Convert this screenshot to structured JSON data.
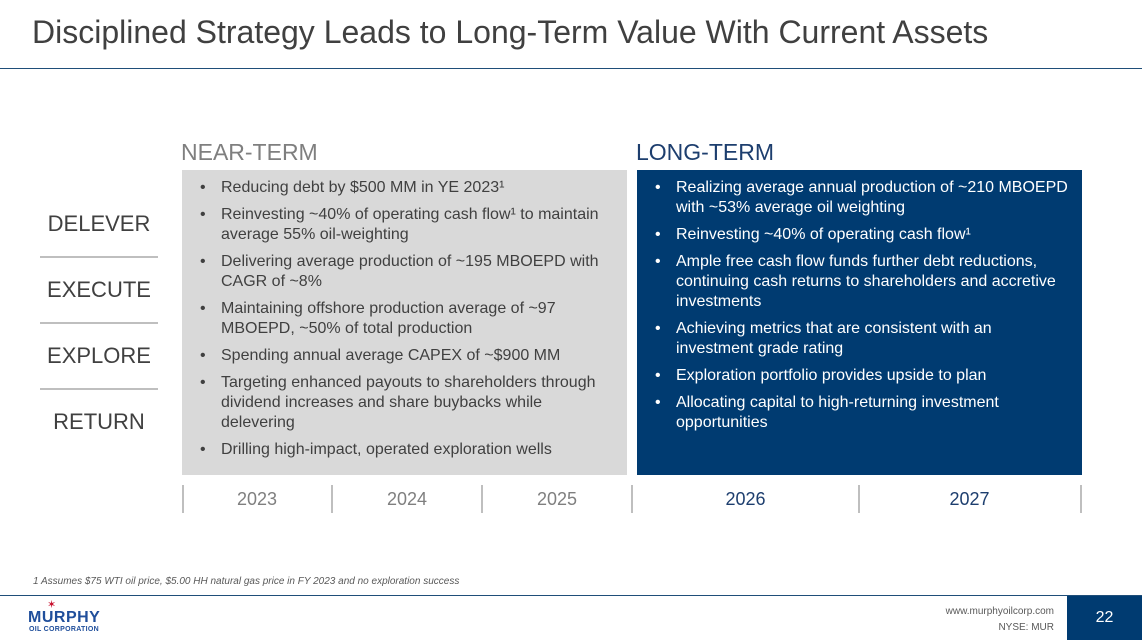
{
  "title": "Disciplined Strategy Leads to Long-Term Value With Current Assets",
  "near_term": {
    "heading": "NEAR-TERM",
    "bullets": [
      "Reducing debt by $500 MM in YE 2023¹",
      "Reinvesting ~40% of operating cash flow¹ to maintain average 55% oil-weighting",
      "Delivering average production of ~195 MBOEPD with CAGR of ~8%",
      "Maintaining offshore production average of ~97 MBOEPD, ~50% of total production",
      "Spending annual average CAPEX of ~$900 MM",
      "Targeting enhanced payouts to shareholders through dividend increases and share buybacks while delevering",
      "Drilling high-impact, operated exploration wells"
    ]
  },
  "long_term": {
    "heading": "LONG-TERM",
    "bullets": [
      "Realizing average annual production of ~210 MBOEPD with ~53% average oil weighting",
      "Reinvesting ~40% of operating cash flow¹",
      "Ample free cash flow funds further debt reductions, continuing cash returns to shareholders and accretive investments",
      "Achieving metrics that are consistent with an investment grade rating",
      "Exploration portfolio provides upside to plan",
      "Allocating capital to high-returning investment opportunities"
    ]
  },
  "strategy_labels": [
    "DELEVER",
    "EXECUTE",
    "EXPLORE",
    "RETURN"
  ],
  "years": {
    "near": [
      "2023",
      "2024",
      "2025"
    ],
    "long": [
      "2026",
      "2027"
    ]
  },
  "footnote": "1 Assumes $75 WTI oil price, $5.00 HH natural gas price in FY 2023 and no exploration success",
  "footer": {
    "logo_name": "MURPHY",
    "logo_sub": "OIL CORPORATION",
    "website": "www.murphyoilcorp.com",
    "ticker": "NYSE: MUR",
    "page_number": "22"
  },
  "colors": {
    "navy": "#003b71",
    "gray_panel": "#d9d9d9",
    "logo_red": "#c8102e"
  },
  "icons": [
    "murphy-star-icon"
  ]
}
